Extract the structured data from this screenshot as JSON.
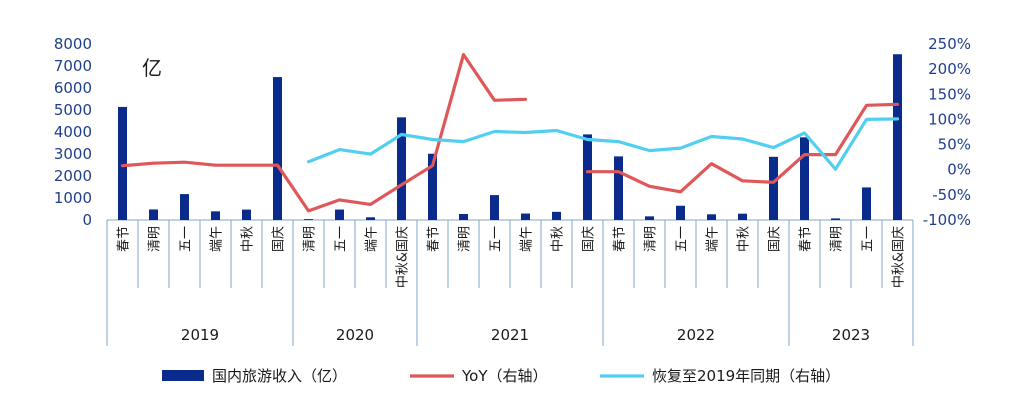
{
  "chart_data": {
    "type": "bar+line",
    "unit_label": "亿",
    "categories": [
      "春节",
      "清明",
      "五一",
      "端午",
      "中秋",
      "国庆",
      "清明",
      "五一",
      "端午",
      "中秋&国庆",
      "春节",
      "清明",
      "五一",
      "端午",
      "中秋",
      "国庆",
      "春节",
      "清明",
      "五一",
      "端午",
      "中秋",
      "国庆",
      "春节",
      "清明",
      "五一",
      "中秋&国庆"
    ],
    "year_groups": [
      {
        "label": "2019",
        "start": 0,
        "end": 5
      },
      {
        "label": "2020",
        "start": 6,
        "end": 9
      },
      {
        "label": "2021",
        "start": 10,
        "end": 15
      },
      {
        "label": "2022",
        "start": 16,
        "end": 21
      },
      {
        "label": "2023",
        "start": 22,
        "end": 25
      }
    ],
    "left_axis": {
      "min": 0,
      "max": 8000,
      "ticks": [
        "0",
        "1000",
        "2000",
        "3000",
        "4000",
        "5000",
        "6000",
        "7000",
        "8000"
      ]
    },
    "right_axis": {
      "min": -100,
      "max": 250,
      "ticks": [
        "-100%",
        "-50%",
        "0%",
        "50%",
        "100%",
        "150%",
        "200%",
        "250%"
      ]
    },
    "series": [
      {
        "name": "国内旅游收入（亿）",
        "type": "bar",
        "axis": "left",
        "color": "#0A2A8C",
        "values": [
          5139,
          479,
          1177,
          393,
          473,
          6497,
          40,
          475,
          123,
          4666,
          3011,
          272,
          1132,
          294,
          371,
          3891,
          2891,
          165,
          647,
          258,
          287,
          2872,
          3758,
          72,
          1481,
          7534
        ]
      },
      {
        "name": "YoY（右轴）",
        "type": "line",
        "axis": "right",
        "color": "#E0575A",
        "segments": [
          {
            "start": 0,
            "values": [
              8,
              13,
              15,
              9,
              9,
              9,
              -82,
              -60,
              -69,
              -30,
              8,
              229,
              138,
              140
            ]
          },
          {
            "start": 15,
            "values": [
              -4,
              -4,
              -33,
              -44,
              12,
              -22,
              -25,
              30,
              30,
              128,
              130
            ]
          }
        ]
      },
      {
        "name": "恢复至2019年同期（右轴）",
        "type": "line",
        "axis": "right",
        "color": "#52CFF0",
        "segments": [
          {
            "start": 6,
            "values": [
              16,
              40,
              31,
              70,
              60,
              56,
              76,
              74,
              78,
              60,
              56,
              38,
              43,
              66,
              61,
              44,
              73,
              1,
              100,
              101
            ]
          }
        ]
      }
    ]
  }
}
